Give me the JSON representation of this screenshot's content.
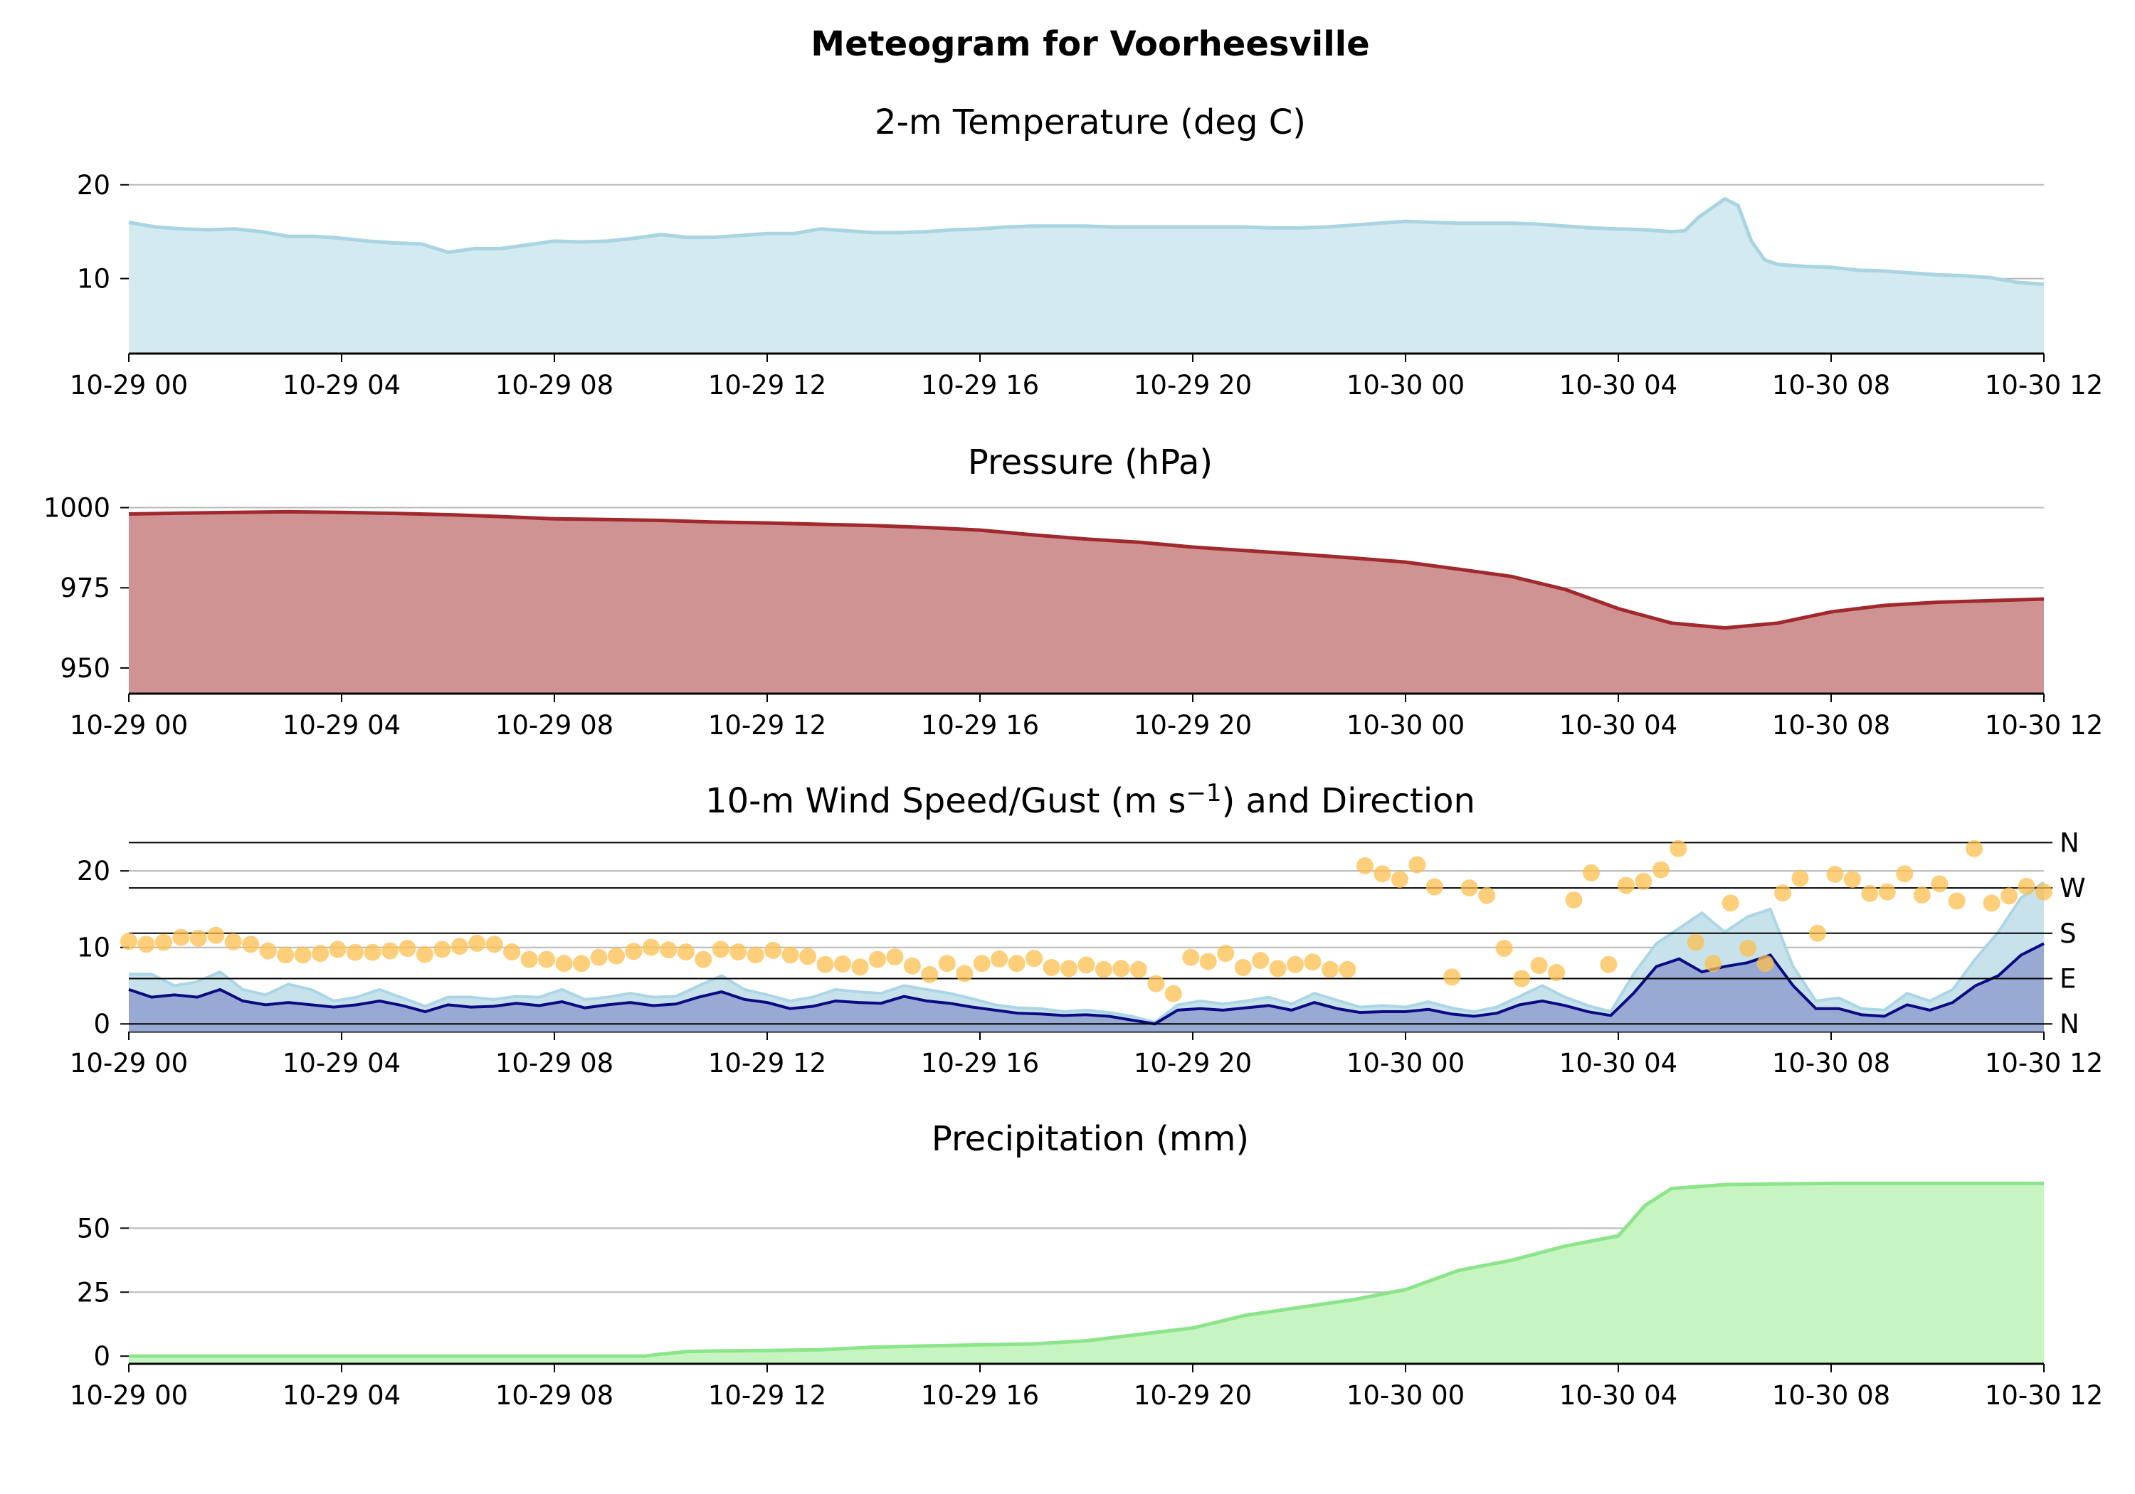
{
  "title": "Meteogram for Voorheesville",
  "colors": {
    "temp_fill": "#d3eaf0",
    "temp_line": "#a9d4e2",
    "pres_fill": "#d09394",
    "pres_line": "#a1292d",
    "gust_fill": "#c8e2ec",
    "gust_line": "#abd6e6",
    "speed_fill": "#98a9d4",
    "speed_line": "#0a0a82",
    "dir_marker": "#fcbf4e",
    "precip_fill": "#c6f5c2",
    "precip_line": "#8ce58a",
    "grid": "#b8b8b8"
  },
  "chart_data": [
    {
      "type": "area",
      "name": "temperature",
      "title": "2-m Temperature (deg C)",
      "x_start": "10-29 00",
      "x_end": "10-30 12",
      "xticks": [
        "10-29 00",
        "10-29 04",
        "10-29 08",
        "10-29 12",
        "10-29 16",
        "10-29 20",
        "10-30 00",
        "10-30 04",
        "10-30 08",
        "10-30 12"
      ],
      "xtick_hours": [
        0,
        4,
        8,
        12,
        16,
        20,
        24,
        28,
        32,
        36
      ],
      "ylim": [
        2,
        21.5
      ],
      "yticks": [
        10,
        20
      ],
      "ytick_labels": [
        "10",
        "20"
      ],
      "grid": true,
      "x_hours": [
        0,
        0.5,
        1,
        1.5,
        2,
        2.5,
        3,
        3.5,
        4,
        4.5,
        5,
        5.5,
        6,
        6.5,
        7,
        7.5,
        8,
        8.5,
        9,
        9.5,
        10,
        10.5,
        11,
        11.5,
        12,
        12.5,
        13,
        13.5,
        14,
        14.5,
        15,
        15.5,
        16,
        16.5,
        17,
        17.5,
        18,
        18.5,
        19,
        19.5,
        20,
        20.5,
        21,
        21.5,
        22,
        22.5,
        23,
        23.5,
        24,
        24.5,
        25,
        25.5,
        26,
        26.5,
        27,
        27.5,
        28,
        28.5,
        29,
        29.25,
        29.5,
        29.75,
        30,
        30.25,
        30.5,
        30.75,
        31,
        31.5,
        32,
        32.5,
        33,
        33.5,
        34,
        34.5,
        35,
        35.5,
        36
      ],
      "values": [
        16,
        15.5,
        15.3,
        15.2,
        15.3,
        15,
        14.5,
        14.5,
        14.3,
        14,
        13.8,
        13.7,
        12.8,
        13.2,
        13.2,
        13.6,
        14,
        13.9,
        14,
        14.3,
        14.7,
        14.4,
        14.4,
        14.6,
        14.8,
        14.8,
        15.3,
        15.1,
        14.9,
        14.9,
        15,
        15.2,
        15.3,
        15.5,
        15.6,
        15.6,
        15.6,
        15.5,
        15.5,
        15.5,
        15.5,
        15.5,
        15.5,
        15.4,
        15.4,
        15.5,
        15.7,
        15.9,
        16.1,
        16.0,
        15.9,
        15.9,
        15.9,
        15.8,
        15.6,
        15.4,
        15.3,
        15.2,
        15.0,
        15.1,
        16.5,
        17.5,
        18.5,
        17.8,
        14.0,
        12.0,
        11.5,
        11.3,
        11.2,
        10.9,
        10.8,
        10.6,
        10.4,
        10.3,
        10.1,
        9.6,
        9.4
      ]
    },
    {
      "type": "area",
      "name": "pressure",
      "title": "Pressure (hPa)",
      "x_start": "10-29 00",
      "x_end": "10-30 12",
      "xticks": [
        "10-29 00",
        "10-29 04",
        "10-29 08",
        "10-29 12",
        "10-29 16",
        "10-29 20",
        "10-30 00",
        "10-30 04",
        "10-30 08",
        "10-30 12"
      ],
      "xtick_hours": [
        0,
        4,
        8,
        12,
        16,
        20,
        24,
        28,
        32,
        36
      ],
      "ylim": [
        942,
        1003
      ],
      "yticks": [
        950,
        975,
        1000
      ],
      "ytick_labels": [
        "950",
        "975",
        "1000"
      ],
      "grid": true,
      "x_hours": [
        0,
        1,
        2,
        3,
        4,
        5,
        6,
        7,
        8,
        9,
        10,
        11,
        12,
        13,
        14,
        15,
        16,
        17,
        18,
        19,
        20,
        21,
        22,
        23,
        24,
        25,
        26,
        27,
        28,
        29,
        30,
        31,
        32,
        33,
        34,
        35,
        36
      ],
      "values": [
        998,
        998.3,
        998.5,
        998.7,
        998.5,
        998.2,
        997.8,
        997.2,
        996.5,
        996.3,
        996,
        995.5,
        995.2,
        994.8,
        994.4,
        993.8,
        993.0,
        991.5,
        990.2,
        989.2,
        987.7,
        986.6,
        985.5,
        984.3,
        983.0,
        980.8,
        978.5,
        974.5,
        968.5,
        964.0,
        962.5,
        964.0,
        967.5,
        969.5,
        970.5,
        971.0,
        971.5
      ]
    },
    {
      "type": "area",
      "name": "wind",
      "title": "10-m Wind Speed/Gust (m s",
      "title_sup": "−1",
      "title_end": ") and Direction",
      "x_start": "10-29 00",
      "x_end": "10-30 12",
      "xticks": [
        "10-29 00",
        "10-29 04",
        "10-29 08",
        "10-29 12",
        "10-29 16",
        "10-29 20",
        "10-30 00",
        "10-30 04",
        "10-30 08",
        "10-30 12"
      ],
      "xtick_hours": [
        0,
        4,
        8,
        12,
        16,
        20,
        24,
        28,
        32,
        36
      ],
      "ylim": [
        -1,
        25.5
      ],
      "yticks": [
        0,
        10,
        20
      ],
      "ytick_labels": [
        "0",
        "10",
        "20"
      ],
      "direction_labels": [
        "N",
        "E",
        "S",
        "W",
        "N"
      ],
      "direction_degrees": [
        0,
        90,
        180,
        270,
        360
      ],
      "direction_max_deg": 360,
      "speed_max_units": 23.7,
      "grid": true,
      "series": [
        {
          "name": "Wind Speed",
          "values": [
            4.5,
            3.5,
            3.8,
            3.5,
            4.5,
            3.0,
            2.5,
            2.8,
            2.5,
            2.2,
            2.5,
            3.0,
            2.4,
            1.6,
            2.5,
            2.2,
            2.3,
            2.7,
            2.4,
            2.9,
            2.1,
            2.5,
            2.8,
            2.4,
            2.6,
            3.5,
            4.2,
            3.2,
            2.8,
            2.0,
            2.3,
            3.0,
            2.8,
            2.7,
            3.6,
            3.0,
            2.7,
            2.2,
            1.8,
            1.4,
            1.3,
            1.1,
            1.2,
            1.0,
            0.5,
            0,
            1.8,
            2.0,
            1.8,
            2.1,
            2.4,
            1.8,
            2.8,
            2.0,
            1.5,
            1.6,
            1.6,
            1.9,
            1.3,
            1.0,
            1.4,
            2.5,
            3.0,
            2.4,
            1.6,
            1.1,
            4.0,
            7.5,
            8.5,
            6.8,
            7.5,
            8.0,
            9.0,
            5.0,
            2.0,
            2.0,
            1.2,
            1.0,
            2.5,
            1.8,
            2.8,
            5.0,
            6.3,
            9.0,
            10.5
          ]
        },
        {
          "name": "Wind Gust",
          "values": [
            6.5,
            6.5,
            5.0,
            5.5,
            6.8,
            4.5,
            3.8,
            5.2,
            4.5,
            3.0,
            3.5,
            4.5,
            3.4,
            2.3,
            3.5,
            3.5,
            3.2,
            3.6,
            3.5,
            4.5,
            3.2,
            3.5,
            4.0,
            3.5,
            3.6,
            5.0,
            6.3,
            4.5,
            3.8,
            3.0,
            3.5,
            4.5,
            4.2,
            4.0,
            5.0,
            4.5,
            4.0,
            3.3,
            2.5,
            2.1,
            2.0,
            1.6,
            1.8,
            1.5,
            1.0,
            0.2,
            2.5,
            3.0,
            2.6,
            3.0,
            3.5,
            2.6,
            4.0,
            3.1,
            2.2,
            2.4,
            2.2,
            2.9,
            2.1,
            1.6,
            2.2,
            3.6,
            5.0,
            3.5,
            2.4,
            1.6,
            6.5,
            10.5,
            12.5,
            14.5,
            12.0,
            14.0,
            15.0,
            7.5,
            3.0,
            3.4,
            2.0,
            1.8,
            4.0,
            3.0,
            4.5,
            8.5,
            12.0,
            16.5,
            18.5
          ]
        },
        {
          "name": "Wind Direction",
          "dir_values": [
            164,
            158,
            162,
            172,
            170,
            176,
            163,
            158,
            145,
            137,
            137,
            140,
            148,
            142,
            142,
            145,
            150,
            138,
            148,
            154,
            160,
            158,
            143,
            128,
            128,
            120,
            120,
            132,
            135,
            144,
            152,
            147,
            143,
            128,
            148,
            143,
            137,
            146,
            137,
            134,
            118,
            119,
            113,
            128,
            133,
            115,
            98,
            120,
            100,
            120,
            129,
            120,
            130,
            112,
            110,
            117,
            108,
            110,
            108,
            80,
            60,
            132,
            124,
            140,
            112,
            126,
            110,
            118,
            123,
            108,
            108,
            314,
            298,
            287,
            316,
            272,
            93,
            270,
            255,
            150,
            90,
            116,
            102,
            246,
            300,
            118,
            275,
            283,
            306,
            348,
            162,
            120,
            240,
            150,
            120,
            260,
            289,
            180,
            297,
            287,
            259,
            262,
            298,
            256,
            278,
            244,
            348,
            240,
            254,
            273,
            262
          ]
        }
      ]
    },
    {
      "type": "area",
      "name": "precipitation",
      "title": "Precipitation (mm)",
      "x_start": "10-29 00",
      "x_end": "10-30 12",
      "xticks": [
        "10-29 00",
        "10-29 04",
        "10-29 08",
        "10-29 12",
        "10-29 16",
        "10-29 20",
        "10-30 00",
        "10-30 04",
        "10-30 08",
        "10-30 12"
      ],
      "xtick_hours": [
        0,
        4,
        8,
        12,
        16,
        20,
        24,
        28,
        32,
        36
      ],
      "ylim": [
        -3,
        74
      ],
      "yticks": [
        0,
        25,
        50
      ],
      "ytick_labels": [
        "0",
        "25",
        "50"
      ],
      "grid": true,
      "x_hours": [
        0,
        9,
        9.7,
        10,
        10.5,
        11,
        12,
        13,
        14,
        15,
        16,
        17,
        18,
        19,
        20,
        21,
        22,
        23,
        24,
        25,
        26,
        27,
        28,
        28.5,
        29,
        30,
        31,
        32,
        33,
        34,
        35,
        36
      ],
      "values": [
        0,
        0,
        0,
        0.8,
        1.8,
        2.0,
        2.2,
        2.5,
        3.5,
        4.0,
        4.4,
        4.8,
        6.0,
        8.5,
        11,
        16,
        19,
        22,
        26,
        33.5,
        37.5,
        43,
        47,
        58.8,
        65.5,
        67,
        67.3,
        67.5,
        67.5,
        67.5,
        67.5,
        67.5
      ]
    }
  ]
}
